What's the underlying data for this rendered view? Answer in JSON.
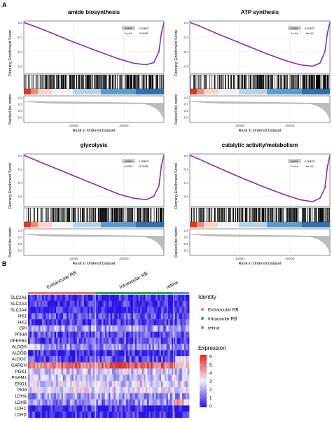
{
  "panel_labels": [
    "A",
    "B"
  ],
  "chart_data": [
    {
      "type": "line",
      "title": "amide biosynthesis",
      "ylabel": "Running Enrichment Score",
      "ylabel2": "Ranked list metric",
      "xlabel": "Rank in Ordered Dataset",
      "x_ticks": [
        10000,
        20000
      ],
      "y_ticks": [
        "0.0",
        "-0.2",
        "-0.4",
        "-0.6"
      ],
      "metric_ticks": [
        "2.5",
        "0.0",
        "-2.5",
        "-5.0"
      ],
      "xlim": [
        0,
        28000
      ],
      "ylim": [
        -0.7,
        0.02
      ],
      "x": [
        0,
        2000,
        5000,
        10000,
        15000,
        19000,
        22000,
        24500,
        26000,
        27000,
        27500,
        28000
      ],
      "y": [
        0.0,
        -0.05,
        -0.13,
        -0.27,
        -0.4,
        -0.5,
        -0.56,
        -0.58,
        -0.55,
        -0.4,
        -0.15,
        0.0
      ],
      "table_headers": [
        "pvalue",
        "p.adjust"
      ],
      "table_values": [
        "1e-04",
        "0.0029"
      ]
    },
    {
      "type": "line",
      "title": "ATP synthesis",
      "ylabel": "Running Enrichment Score",
      "ylabel2": "Ranked list metric",
      "xlabel": "Rank in Ordered Dataset",
      "x_ticks": [
        10000,
        20000
      ],
      "y_ticks": [
        "0.0",
        "-0.2",
        "-0.4",
        "-0.6"
      ],
      "metric_ticks": [
        "2.5",
        "0.0",
        "-2.5",
        "-5.0"
      ],
      "xlim": [
        0,
        28000
      ],
      "ylim": [
        -0.7,
        0.02
      ],
      "x": [
        0,
        2000,
        5000,
        10000,
        15000,
        19000,
        22000,
        24500,
        26000,
        27000,
        27500,
        28000
      ],
      "y": [
        0.0,
        -0.05,
        -0.14,
        -0.28,
        -0.42,
        -0.52,
        -0.58,
        -0.6,
        -0.56,
        -0.4,
        -0.15,
        0.0
      ],
      "table_headers": [
        "pvalue",
        "p.adjust"
      ],
      "table_values": [
        "1e-04",
        "9e-04"
      ]
    },
    {
      "type": "line",
      "title": "glycolysis",
      "ylabel": "Running Enrichment Score",
      "ylabel2": "Ranked list metric",
      "xlabel": "Rank in Ordered Dataset",
      "x_ticks": [
        10000,
        20000
      ],
      "y_ticks": [
        "0.0",
        "-0.2",
        "-0.4",
        "-0.6"
      ],
      "metric_ticks": [
        "2.5",
        "0.0",
        "-2.5",
        "-5.0"
      ],
      "xlim": [
        0,
        28000
      ],
      "ylim": [
        -0.75,
        0.02
      ],
      "x": [
        0,
        2000,
        5000,
        10000,
        15000,
        19000,
        22000,
        24500,
        26000,
        27000,
        27500,
        28000
      ],
      "y": [
        0.0,
        -0.06,
        -0.15,
        -0.3,
        -0.45,
        -0.57,
        -0.63,
        -0.65,
        -0.6,
        -0.45,
        -0.15,
        0.0
      ],
      "table_headers": [
        "pvalue",
        "p.adjust"
      ],
      "table_values": [
        "0.0037",
        "0.0208"
      ]
    },
    {
      "type": "line",
      "title": "catalytic activity/metabolism",
      "ylabel": "Running Enrichment Score",
      "ylabel2": "Ranked list metric",
      "xlabel": "Rank in Ordered Dataset",
      "x_ticks": [
        10000,
        20000
      ],
      "y_ticks": [
        "0.0",
        "-0.2",
        "-0.4",
        "-0.6"
      ],
      "metric_ticks": [
        "2.5",
        "0.0",
        "-2.5",
        "-5.0"
      ],
      "xlim": [
        0,
        28000
      ],
      "ylim": [
        -0.75,
        0.02
      ],
      "x": [
        0,
        2000,
        5000,
        10000,
        15000,
        19000,
        22000,
        24500,
        26000,
        27000,
        27500,
        28000
      ],
      "y": [
        0.0,
        -0.06,
        -0.16,
        -0.32,
        -0.47,
        -0.58,
        -0.65,
        -0.68,
        -0.63,
        -0.48,
        -0.17,
        0.0
      ],
      "table_headers": [
        "pvalue",
        "p.adjust"
      ],
      "table_values": [
        "2e-04",
        "9e-04"
      ]
    },
    {
      "type": "heatmap",
      "groups": [
        {
          "name": "Extraocular RB",
          "fraction": 0.418,
          "color": "#e9776e"
        },
        {
          "name": "Intraocular RB",
          "fraction": 0.486,
          "color": "#18b250"
        },
        {
          "name": "retina",
          "fraction": 0.096,
          "color": "#5c8de2"
        }
      ],
      "genes": [
        "SLC2A1",
        "SLC2A3",
        "SLC2A4",
        "HK1",
        "HK2",
        "GPI",
        "PFKM",
        "PFKFB3",
        "ALDOA",
        "ALDOB",
        "ALDOC",
        "GAPDH",
        "PGK1",
        "PGAM1",
        "ENO1",
        "PKM",
        "LDHA",
        "LDHB",
        "LDHC",
        "LDHD"
      ],
      "gene_levels": [
        0.3,
        0.4,
        0.2,
        0.9,
        0.7,
        1.8,
        0.9,
        0.8,
        1.6,
        0.3,
        0.8,
        5.0,
        2.5,
        2.3,
        2.6,
        2.9,
        1.9,
        1.6,
        0.2,
        0.3
      ],
      "legend_identity_title": "Identity",
      "legend_expression_title": "Expression",
      "expression_ticks": [
        "6",
        "5",
        "4",
        "3",
        "2",
        "1",
        "0"
      ],
      "expression_range": [
        0,
        6
      ]
    }
  ]
}
